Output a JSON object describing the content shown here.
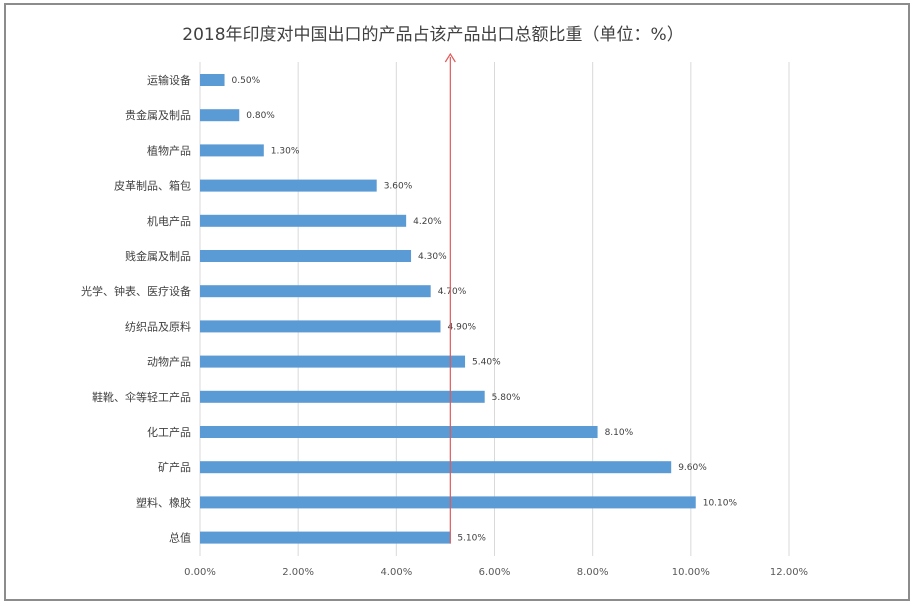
{
  "chart_data": {
    "type": "bar",
    "orientation": "horizontal",
    "title": "2018年印度对中国出口的产品占该产品出口总额比重（单位：%）",
    "categories": [
      "运输设备",
      "贵金属及制品",
      "植物产品",
      "皮革制品、箱包",
      "机电产品",
      "贱金属及制品",
      "光学、钟表、医疗设备",
      "纺织品及原料",
      "动物产品",
      "鞋靴、伞等轻工产品",
      "化工产品",
      "矿产品",
      "塑料、橡胶",
      "总值"
    ],
    "values": [
      0.5,
      0.8,
      1.3,
      3.6,
      4.2,
      4.3,
      4.7,
      4.9,
      5.4,
      5.8,
      8.1,
      9.6,
      10.1,
      5.1
    ],
    "data_labels": [
      "0.50%",
      "0.80%",
      "1.30%",
      "3.60%",
      "4.20%",
      "4.30%",
      "4.70%",
      "4.90%",
      "5.40%",
      "5.80%",
      "8.10%",
      "9.60%",
      "10.10%",
      "5.10%"
    ],
    "xlim": [
      0,
      12
    ],
    "xticks": [
      0,
      2,
      4,
      6,
      8,
      10,
      12
    ],
    "xtick_labels": [
      "0.00%",
      "2.00%",
      "4.00%",
      "6.00%",
      "8.00%",
      "10.00%",
      "12.00%"
    ],
    "reference_line": {
      "x": 5.1,
      "color": "#e05a5a",
      "arrow": "up"
    },
    "bar_color": "#5b9bd5",
    "grid": "vertical",
    "legend": "none"
  }
}
